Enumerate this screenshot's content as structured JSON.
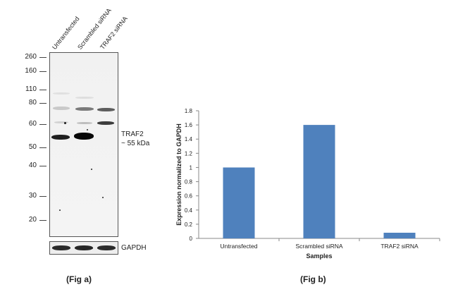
{
  "fig_a": {
    "lane_labels": [
      "Untransfected",
      "Scrambled siRNA",
      "TRAF2 siRNA"
    ],
    "mw_markers": [
      "260",
      "160",
      "110",
      "80",
      "60",
      "50",
      "40",
      "30",
      "20"
    ],
    "band_label_line1": "TRAF2",
    "band_label_line2": "~ 55 kDa",
    "loading_control": "GAPDH",
    "caption": "(Fig a)"
  },
  "fig_b": {
    "caption": "(Fig b)"
  },
  "chart_data": {
    "type": "bar",
    "categories": [
      "Untransfected",
      "Scrambled siRNA",
      "TRAF2 siRNA"
    ],
    "values": [
      1.0,
      1.6,
      0.08
    ],
    "xlabel": "Samples",
    "ylabel": "Expression  normalized to GAPDH",
    "ylim": [
      0,
      1.8
    ],
    "yticks": [
      "0",
      "0.2",
      "0.4",
      "0.6",
      "0.8",
      "1",
      "1.2",
      "1.4",
      "1.6",
      "1.8"
    ],
    "bar_color": "#4f81bd",
    "grid": false,
    "legend": "none"
  }
}
